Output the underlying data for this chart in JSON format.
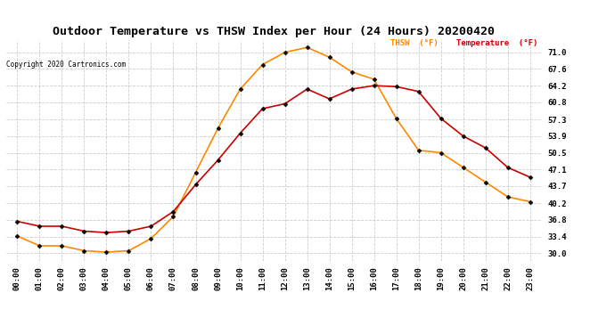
{
  "title": "Outdoor Temperature vs THSW Index per Hour (24 Hours) 20200420",
  "copyright": "Copyright 2020 Cartronics.com",
  "hours": [
    "00:00",
    "01:00",
    "02:00",
    "03:00",
    "04:00",
    "05:00",
    "06:00",
    "07:00",
    "08:00",
    "09:00",
    "10:00",
    "11:00",
    "12:00",
    "13:00",
    "14:00",
    "15:00",
    "16:00",
    "17:00",
    "18:00",
    "19:00",
    "20:00",
    "21:00",
    "22:00",
    "23:00"
  ],
  "temperature": [
    36.5,
    35.5,
    35.5,
    34.5,
    34.2,
    34.5,
    35.5,
    38.5,
    44.0,
    49.0,
    54.5,
    59.5,
    60.5,
    63.5,
    61.5,
    63.5,
    64.2,
    64.0,
    63.0,
    57.5,
    53.9,
    51.5,
    47.5,
    45.5
  ],
  "thsw": [
    33.5,
    31.5,
    31.5,
    30.5,
    30.2,
    30.5,
    33.0,
    37.5,
    46.5,
    55.5,
    63.5,
    68.5,
    71.0,
    72.0,
    70.0,
    67.0,
    65.5,
    57.5,
    51.0,
    50.5,
    47.5,
    44.5,
    41.5,
    40.5
  ],
  "temp_color": "#cc0000",
  "thsw_color": "#ff8800",
  "marker": "D",
  "marker_size": 2.5,
  "line_width": 1.2,
  "ylim": [
    28.5,
    73.5
  ],
  "yticks": [
    30.0,
    33.4,
    36.8,
    40.2,
    43.7,
    47.1,
    50.5,
    53.9,
    57.3,
    60.8,
    64.2,
    67.6,
    71.0
  ],
  "ytick_labels": [
    "30.0",
    "33.4",
    "36.8",
    "40.2",
    "43.7",
    "47.1",
    "50.5",
    "53.9",
    "57.3",
    "60.8",
    "64.2",
    "67.6",
    "71.0"
  ],
  "background_color": "#ffffff",
  "grid_color": "#cccccc",
  "title_fontsize": 9.5,
  "axis_fontsize": 6.5,
  "legend_thsw": "THSW  (°F)",
  "legend_temp": "Temperature  (°F)"
}
